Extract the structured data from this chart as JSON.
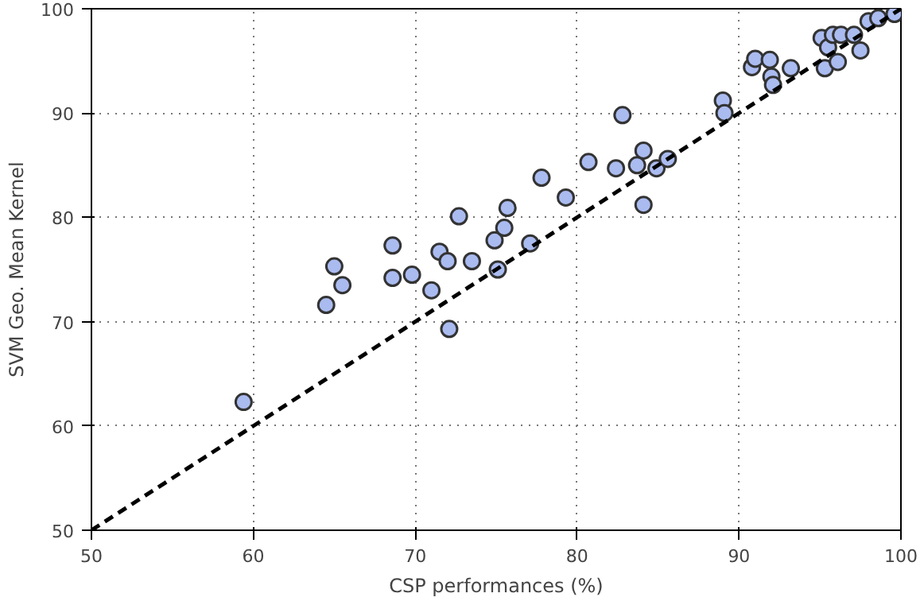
{
  "chart_data": {
    "type": "scatter",
    "xlabel": "CSP performances (%)",
    "ylabel": "SVM Geo. Mean Kernel",
    "xlim": [
      50,
      100
    ],
    "ylim": [
      50,
      100
    ],
    "xticks": [
      50,
      60,
      70,
      80,
      90,
      100
    ],
    "yticks": [
      50,
      60,
      70,
      80,
      90,
      100
    ],
    "grid": true,
    "series": [
      {
        "marker": "circle",
        "color": "#aabbf0",
        "x": [
          59.4,
          64.5,
          65.0,
          65.5,
          68.6,
          68.6,
          69.8,
          71.0,
          71.5,
          72.0,
          72.1,
          72.7,
          73.5,
          74.9,
          75.1,
          75.5,
          75.7,
          77.1,
          77.8,
          79.3,
          80.7,
          82.4,
          82.8,
          83.7,
          84.1,
          84.1,
          84.9,
          85.6,
          89.0,
          89.1,
          90.8,
          91.0,
          91.9,
          92.0,
          92.1,
          93.2,
          95.1,
          95.3,
          95.5,
          95.8,
          96.1,
          96.3,
          97.1,
          97.5,
          98.0,
          98.6,
          99.6
        ],
        "values": [
          62.3,
          71.6,
          75.3,
          73.5,
          77.3,
          74.2,
          74.5,
          73.0,
          76.7,
          75.8,
          69.3,
          80.1,
          75.8,
          77.8,
          75.0,
          79.0,
          80.9,
          77.5,
          83.8,
          81.9,
          85.3,
          84.7,
          89.8,
          85.0,
          86.4,
          81.2,
          84.7,
          85.6,
          91.2,
          90.0,
          94.4,
          95.2,
          95.1,
          93.5,
          92.7,
          94.3,
          97.2,
          94.3,
          96.3,
          97.5,
          94.9,
          97.5,
          97.5,
          96.0,
          98.8,
          99.1,
          99.5
        ]
      },
      {
        "type": "line",
        "color": "#000000",
        "line_style": "dashed",
        "x": [
          50,
          100
        ],
        "values": [
          50,
          100
        ]
      }
    ]
  }
}
